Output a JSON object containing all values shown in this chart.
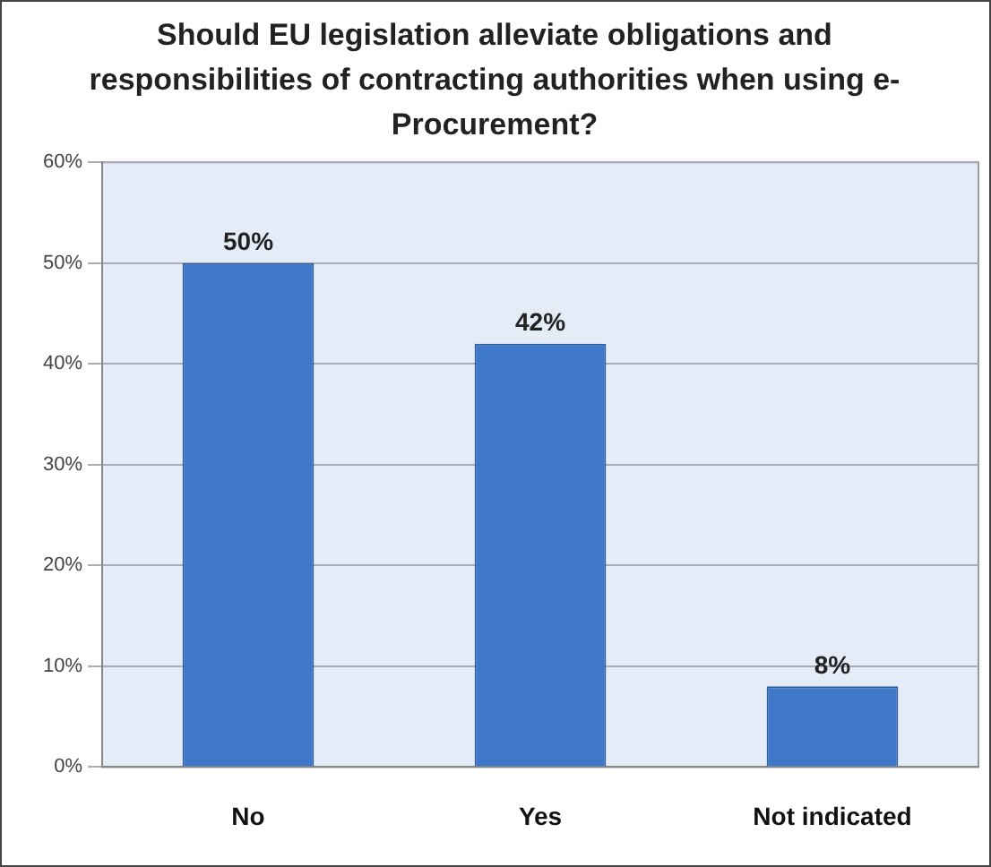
{
  "chart_data": {
    "type": "bar",
    "title": "Should EU legislation alleviate obligations and responsibilities of contracting authorities when using e-Procurement?",
    "categories": [
      "No",
      "Yes",
      "Not indicated"
    ],
    "values": [
      50,
      42,
      8
    ],
    "color": "#3f78c8",
    "value_labels": [
      "50%",
      "42%",
      "8%"
    ],
    "ylim": [
      0,
      60
    ],
    "yticks": [
      {
        "value": 0,
        "label": "0%"
      },
      {
        "value": 10,
        "label": "10%"
      },
      {
        "value": 20,
        "label": "20%"
      },
      {
        "value": 30,
        "label": "30%"
      },
      {
        "value": 40,
        "label": "40%"
      },
      {
        "value": 50,
        "label": "50%"
      },
      {
        "value": 60,
        "label": "60%"
      }
    ],
    "grid": "y",
    "legend": false
  }
}
